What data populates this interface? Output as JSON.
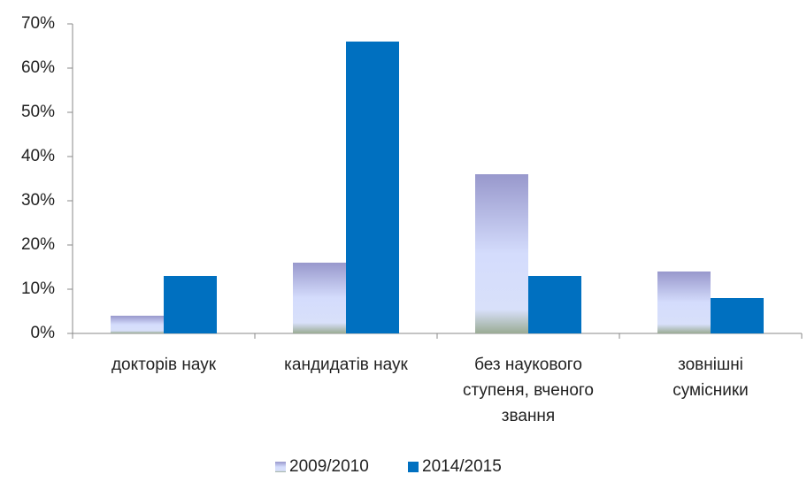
{
  "chart_data": {
    "type": "bar",
    "categories": [
      "докторів наук",
      "кандидатів наук",
      "без наукового\nступеня, вченого\nзвання",
      "зовнішні\nсумісники"
    ],
    "series": [
      {
        "name": "2009/2010",
        "color": "#d4dcfc",
        "values": [
          4,
          16,
          36,
          14
        ]
      },
      {
        "name": "2014/2015",
        "color": "#0070c0",
        "values": [
          13,
          66,
          13,
          8
        ]
      }
    ],
    "ylim": [
      0,
      70
    ],
    "yticks": [
      {
        "value": 0,
        "label": "0%"
      },
      {
        "value": 10,
        "label": "10%"
      },
      {
        "value": 20,
        "label": "20%"
      },
      {
        "value": 30,
        "label": "30%"
      },
      {
        "value": 40,
        "label": "40%"
      },
      {
        "value": 50,
        "label": "50%"
      },
      {
        "value": 60,
        "label": "60%"
      },
      {
        "value": 70,
        "label": "70%"
      }
    ],
    "grid": false,
    "legend": "bottom"
  }
}
